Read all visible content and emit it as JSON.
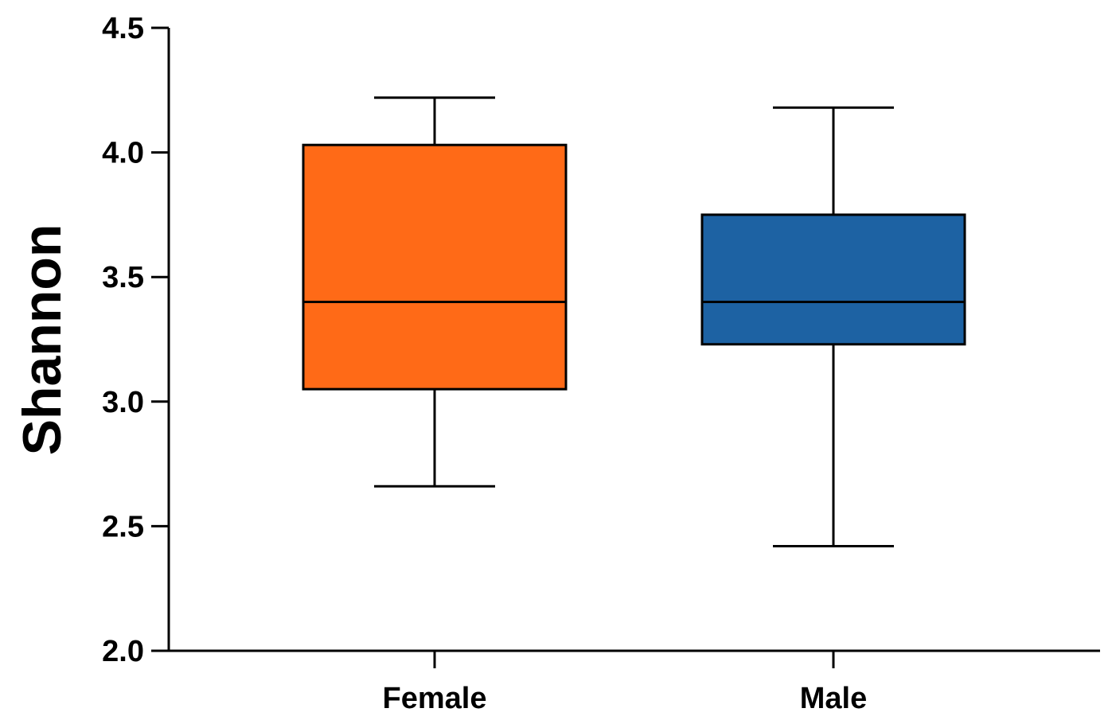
{
  "chart_data": {
    "type": "box",
    "title": "",
    "xlabel": "",
    "ylabel": "Shannon",
    "ylim": [
      2.0,
      4.5
    ],
    "yticks": [
      "2.0",
      "2.5",
      "3.0",
      "3.5",
      "4.0",
      "4.5"
    ],
    "grid": false,
    "categories": [
      "Female",
      "Male"
    ],
    "series": [
      {
        "name": "Female",
        "color": "#FF6A17",
        "whisker_low": 2.66,
        "q1": 3.05,
        "median": 3.4,
        "q3": 4.03,
        "whisker_high": 4.22
      },
      {
        "name": "Male",
        "color": "#1D62A3",
        "whisker_low": 2.42,
        "q1": 3.23,
        "median": 3.4,
        "q3": 3.75,
        "whisker_high": 4.18
      }
    ]
  }
}
